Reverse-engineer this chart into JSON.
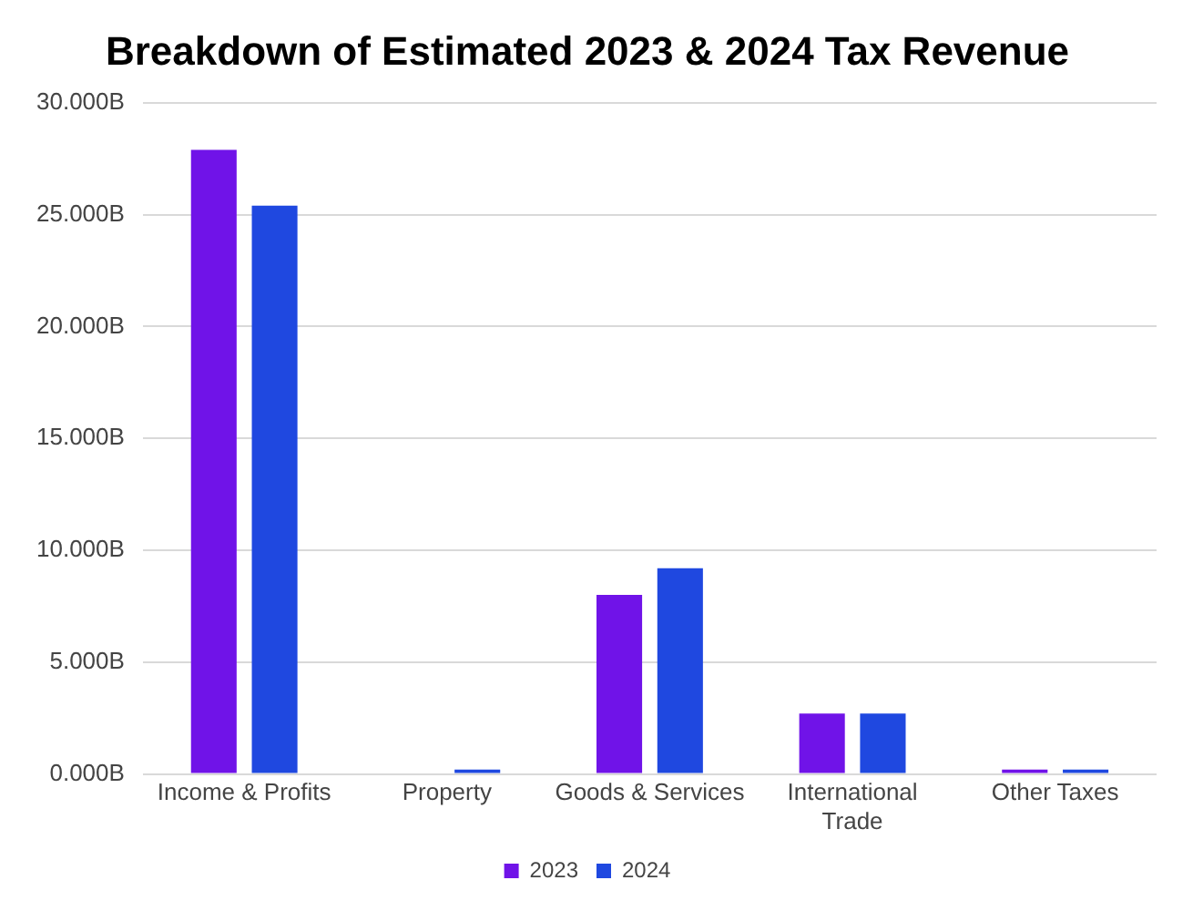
{
  "chart_data": {
    "type": "bar",
    "title": "Breakdown of Estimated 2023 & 2024 Tax Revenue",
    "categories": [
      "Income & Profits",
      "Property",
      "Goods & Services",
      "International Trade",
      "Other Taxes"
    ],
    "series": [
      {
        "name": "2023",
        "color": "#7013e8",
        "values": [
          27.9,
          null,
          8.0,
          2.7,
          0.2
        ]
      },
      {
        "name": "2024",
        "color": "#1f48e0",
        "values": [
          25.4,
          0.2,
          9.2,
          2.7,
          0.2
        ]
      }
    ],
    "ylim": [
      0,
      30
    ],
    "yticks": [
      {
        "value": 0,
        "label": "0.000B"
      },
      {
        "value": 5,
        "label": "5.000B"
      },
      {
        "value": 10,
        "label": "10.000B"
      },
      {
        "value": 15,
        "label": "15.000B"
      },
      {
        "value": 20,
        "label": "20.000B"
      },
      {
        "value": 25,
        "label": "25.000B"
      },
      {
        "value": 30,
        "label": "30.000B"
      }
    ],
    "grid": "y",
    "legend": "bottom"
  }
}
